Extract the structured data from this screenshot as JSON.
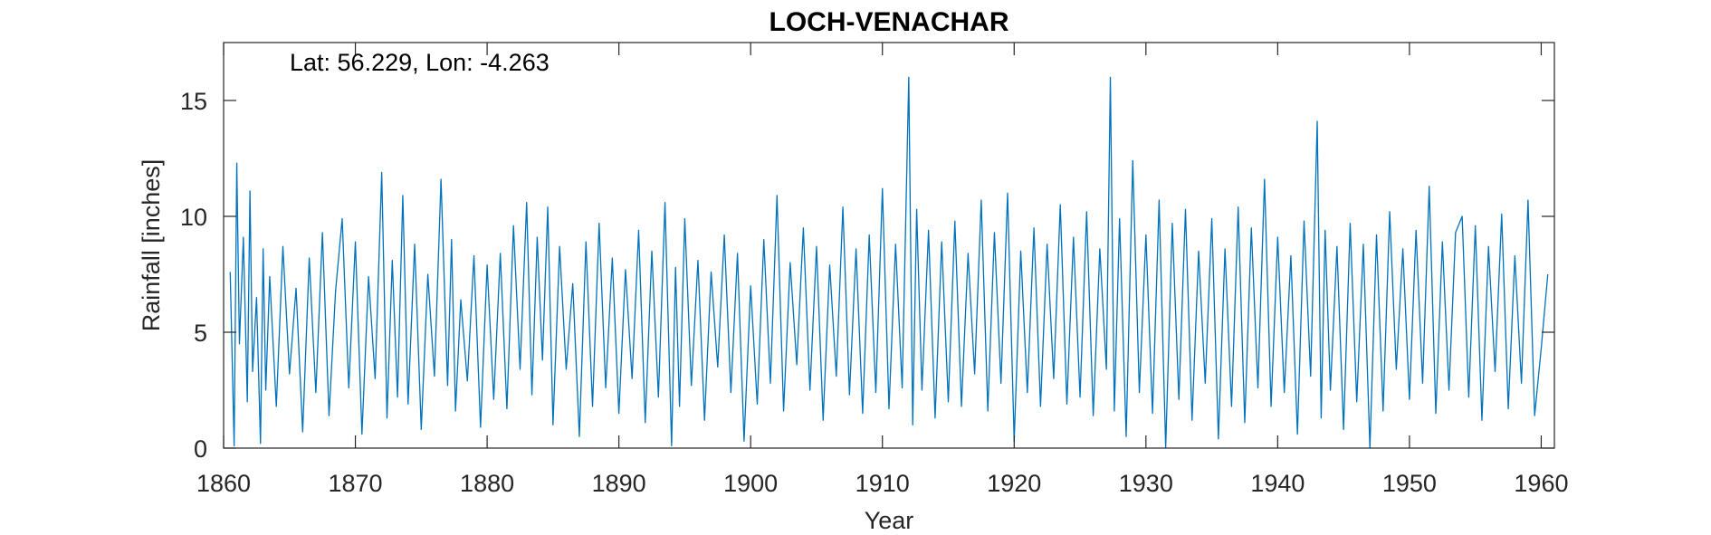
{
  "chart_data": {
    "type": "line",
    "title": "LOCH-VENACHAR",
    "annotation": "Lat: 56.229, Lon: -4.263",
    "xlabel": "Year",
    "ylabel": "Rainfall [inches]",
    "xlim": [
      1860,
      1961
    ],
    "ylim": [
      0,
      17.5
    ],
    "x_ticks": [
      1860,
      1870,
      1880,
      1890,
      1900,
      1910,
      1920,
      1930,
      1940,
      1950,
      1960
    ],
    "y_ticks": [
      0,
      5,
      10,
      15
    ],
    "grid": false,
    "box": true,
    "series": [
      {
        "color": "#0072BD",
        "sampling": "monthly",
        "x": [
          1860.5,
          1860.8,
          1861.0,
          1861.2,
          1861.5,
          1861.8,
          1862.0,
          1862.2,
          1862.5,
          1862.8,
          1863.0,
          1863.2,
          1863.5,
          1864.0,
          1864.5,
          1865.0,
          1865.5,
          1866.0,
          1866.5,
          1867.0,
          1867.5,
          1868.0,
          1868.5,
          1869.0,
          1869.5,
          1870.0,
          1870.5,
          1871.0,
          1871.5,
          1872.0,
          1872.4,
          1872.8,
          1873.2,
          1873.6,
          1874.0,
          1874.5,
          1875.0,
          1875.5,
          1876.0,
          1876.5,
          1877.0,
          1877.3,
          1877.6,
          1878.0,
          1878.5,
          1879.0,
          1879.5,
          1880.0,
          1880.5,
          1881.0,
          1881.5,
          1882.0,
          1882.5,
          1883.0,
          1883.4,
          1883.8,
          1884.2,
          1884.6,
          1885.0,
          1885.5,
          1886.0,
          1886.5,
          1887.0,
          1887.5,
          1888.0,
          1888.5,
          1889.0,
          1889.5,
          1890.0,
          1890.5,
          1891.0,
          1891.5,
          1892.0,
          1892.5,
          1893.0,
          1893.5,
          1894.0,
          1894.3,
          1894.6,
          1895.0,
          1895.5,
          1896.0,
          1896.5,
          1897.0,
          1897.5,
          1898.0,
          1898.5,
          1899.0,
          1899.5,
          1900.0,
          1900.5,
          1901.0,
          1901.5,
          1902.0,
          1902.5,
          1903.0,
          1903.5,
          1904.0,
          1904.5,
          1905.0,
          1905.5,
          1906.0,
          1906.5,
          1907.0,
          1907.5,
          1908.0,
          1908.5,
          1909.0,
          1909.5,
          1910.0,
          1910.5,
          1911.0,
          1911.5,
          1912.0,
          1912.3,
          1912.6,
          1913.0,
          1913.5,
          1914.0,
          1914.5,
          1915.0,
          1915.5,
          1916.0,
          1916.5,
          1917.0,
          1917.5,
          1918.0,
          1918.5,
          1919.0,
          1919.5,
          1920.0,
          1920.5,
          1921.0,
          1921.5,
          1922.0,
          1922.5,
          1923.0,
          1923.5,
          1924.0,
          1924.5,
          1925.0,
          1925.5,
          1926.0,
          1926.5,
          1927.0,
          1927.3,
          1927.6,
          1928.0,
          1928.5,
          1929.0,
          1929.5,
          1930.0,
          1930.5,
          1931.0,
          1931.5,
          1932.0,
          1932.5,
          1933.0,
          1933.5,
          1934.0,
          1934.5,
          1935.0,
          1935.5,
          1936.0,
          1936.5,
          1937.0,
          1937.5,
          1938.0,
          1938.5,
          1939.0,
          1939.5,
          1940.0,
          1940.5,
          1941.0,
          1941.5,
          1942.0,
          1942.5,
          1943.0,
          1943.3,
          1943.6,
          1944.0,
          1944.5,
          1945.0,
          1945.5,
          1946.0,
          1946.5,
          1947.0,
          1947.5,
          1948.0,
          1948.5,
          1949.0,
          1949.5,
          1950.0,
          1950.5,
          1951.0,
          1951.5,
          1952.0,
          1952.5,
          1953.0,
          1953.5,
          1954.0,
          1954.5,
          1955.0,
          1955.5,
          1956.0,
          1956.5,
          1957.0,
          1957.5,
          1958.0,
          1958.5,
          1959.0,
          1959.5,
          1960.0,
          1960.5
        ],
        "y": [
          7.6,
          0.1,
          12.3,
          4.5,
          9.1,
          2.0,
          11.1,
          3.3,
          6.5,
          0.2,
          8.6,
          2.5,
          7.4,
          1.8,
          8.7,
          3.2,
          6.9,
          0.7,
          8.2,
          2.4,
          9.3,
          1.4,
          6.8,
          9.9,
          2.6,
          8.9,
          0.6,
          7.4,
          3.0,
          11.9,
          1.3,
          8.1,
          2.2,
          10.9,
          1.9,
          8.8,
          0.8,
          7.5,
          3.1,
          11.6,
          2.7,
          9.0,
          1.6,
          6.4,
          2.9,
          8.3,
          0.9,
          7.9,
          2.1,
          8.4,
          1.7,
          9.6,
          3.4,
          10.6,
          2.3,
          9.1,
          3.8,
          10.4,
          1.0,
          8.7,
          3.4,
          7.1,
          0.5,
          8.9,
          1.8,
          9.7,
          2.6,
          8.2,
          1.5,
          7.7,
          3.0,
          9.4,
          1.1,
          8.5,
          2.2,
          10.6,
          0.1,
          7.8,
          1.8,
          9.9,
          2.7,
          8.1,
          1.2,
          7.6,
          3.5,
          9.2,
          2.4,
          8.4,
          0.3,
          7.0,
          1.9,
          9.0,
          2.8,
          10.9,
          1.6,
          8.0,
          3.6,
          9.5,
          2.5,
          8.7,
          1.2,
          7.9,
          3.1,
          10.4,
          2.3,
          8.6,
          1.5,
          9.2,
          2.4,
          11.2,
          1.7,
          8.8,
          2.6,
          16.0,
          1.0,
          10.3,
          2.5,
          9.4,
          1.3,
          8.9,
          2.0,
          9.8,
          1.8,
          8.4,
          3.2,
          10.7,
          1.6,
          9.3,
          2.8,
          11.0,
          0.3,
          8.5,
          2.4,
          9.5,
          1.8,
          8.8,
          3.0,
          10.5,
          1.9,
          9.1,
          2.2,
          10.2,
          1.4,
          8.6,
          3.4,
          16.0,
          1.6,
          9.9,
          0.5,
          12.4,
          2.4,
          9.2,
          1.5,
          10.7,
          0.0,
          9.7,
          2.1,
          10.3,
          1.2,
          8.5,
          2.8,
          9.9,
          0.4,
          8.6,
          1.8,
          10.4,
          1.1,
          9.5,
          2.6,
          11.6,
          1.8,
          9.1,
          2.4,
          8.3,
          0.6,
          9.8,
          3.1,
          14.1,
          1.3,
          9.4,
          2.5,
          8.7,
          0.8,
          9.7,
          2.0,
          8.8,
          0.0,
          9.2,
          1.6,
          10.2,
          3.4,
          8.6,
          2.1,
          9.4,
          2.8,
          11.3,
          1.5,
          8.9,
          2.5,
          9.3,
          10.0,
          2.2,
          9.6,
          1.2,
          8.7,
          3.3,
          10.1,
          1.7,
          8.3,
          2.8,
          10.7,
          1.4,
          4.3,
          7.5
        ]
      }
    ]
  }
}
